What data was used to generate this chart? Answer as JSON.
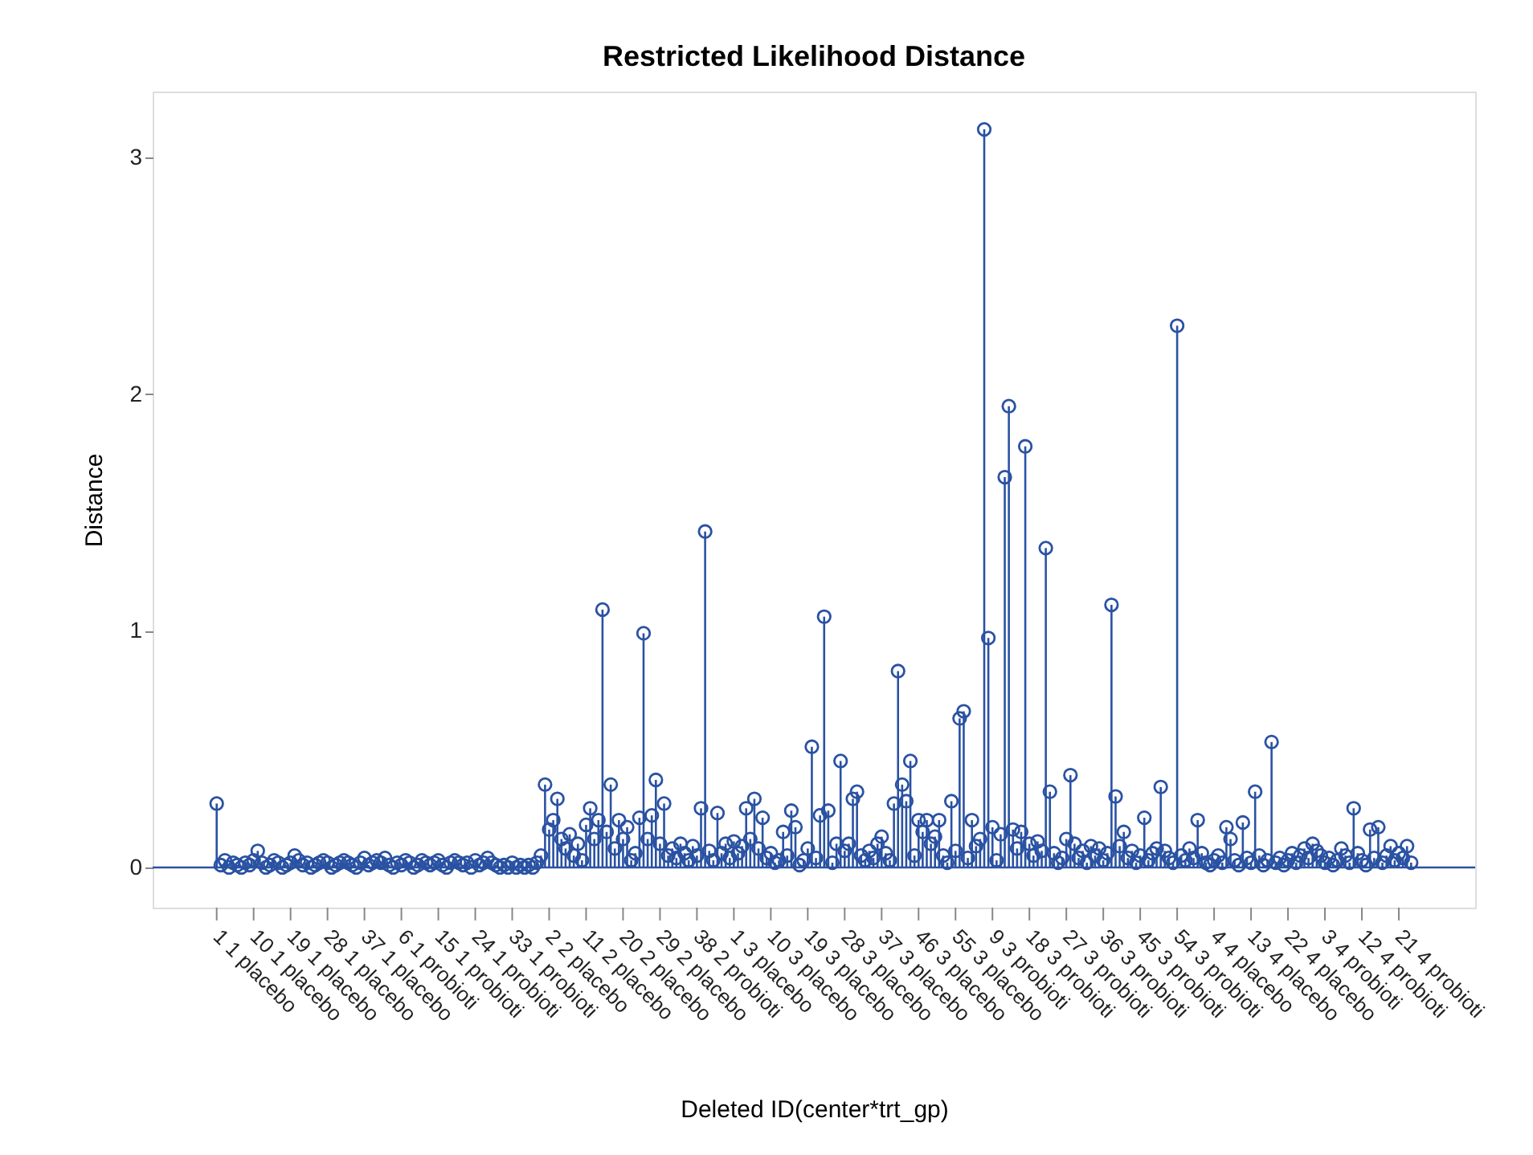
{
  "chart_data": {
    "type": "lollipop",
    "title": "Restricted Likelihood Distance",
    "xlabel": "Deleted ID(center*trt_gp)",
    "ylabel": "Distance",
    "categories": [
      "1 1 placebo",
      null,
      null,
      null,
      null,
      null,
      null,
      null,
      null,
      "10 1 placebo",
      null,
      null,
      null,
      null,
      null,
      null,
      null,
      null,
      "19 1 placebo",
      null,
      null,
      null,
      null,
      null,
      null,
      null,
      null,
      "28 1 placebo",
      null,
      null,
      null,
      null,
      null,
      null,
      null,
      null,
      "37 1 placebo",
      null,
      null,
      null,
      null,
      null,
      null,
      null,
      null,
      "6 1 probioti",
      null,
      null,
      null,
      null,
      null,
      null,
      null,
      null,
      "15 1 probioti",
      null,
      null,
      null,
      null,
      null,
      null,
      null,
      null,
      "24 1 probioti",
      null,
      null,
      null,
      null,
      null,
      null,
      null,
      null,
      "33 1 probioti",
      null,
      null,
      null,
      null,
      null,
      null,
      null,
      null,
      "2 2 placebo",
      null,
      null,
      null,
      null,
      null,
      null,
      null,
      null,
      "11 2 placebo",
      null,
      null,
      null,
      null,
      null,
      null,
      null,
      null,
      "20 2 placebo",
      null,
      null,
      null,
      null,
      null,
      null,
      null,
      null,
      "29 2 placebo",
      null,
      null,
      null,
      null,
      null,
      null,
      null,
      null,
      "38 2 probioti",
      null,
      null,
      null,
      null,
      null,
      null,
      null,
      null,
      "1 3 placebo",
      null,
      null,
      null,
      null,
      null,
      null,
      null,
      null,
      "10 3 placebo",
      null,
      null,
      null,
      null,
      null,
      null,
      null,
      null,
      "19 3 placebo",
      null,
      null,
      null,
      null,
      null,
      null,
      null,
      null,
      "28 3 placebo",
      null,
      null,
      null,
      null,
      null,
      null,
      null,
      null,
      "37 3 placebo",
      null,
      null,
      null,
      null,
      null,
      null,
      null,
      null,
      "46 3 placebo",
      null,
      null,
      null,
      null,
      null,
      null,
      null,
      null,
      "55 3 placebo",
      null,
      null,
      null,
      null,
      null,
      null,
      null,
      null,
      "9 3 probioti",
      null,
      null,
      null,
      null,
      null,
      null,
      null,
      null,
      "18 3 probioti",
      null,
      null,
      null,
      null,
      null,
      null,
      null,
      null,
      "27 3 probioti",
      null,
      null,
      null,
      null,
      null,
      null,
      null,
      null,
      "36 3 probioti",
      null,
      null,
      null,
      null,
      null,
      null,
      null,
      null,
      "45 3 probioti",
      null,
      null,
      null,
      null,
      null,
      null,
      null,
      null,
      "54 3 probioti",
      null,
      null,
      null,
      null,
      null,
      null,
      null,
      null,
      "4 4 placebo",
      null,
      null,
      null,
      null,
      null,
      null,
      null,
      null,
      "13 4 placebo",
      null,
      null,
      null,
      null,
      null,
      null,
      null,
      null,
      "22 4 placebo",
      null,
      null,
      null,
      null,
      null,
      null,
      null,
      null,
      "3 4 probioti",
      null,
      null,
      null,
      null,
      null,
      null,
      null,
      null,
      "12 4 probioti",
      null,
      null,
      null,
      null,
      null,
      null,
      null,
      null,
      "21 4 probioti",
      null,
      null,
      null
    ],
    "series": [
      {
        "color": "#2a52a3",
        "values": [
          0.27,
          0.01,
          0.03,
          0.0,
          0.02,
          0.01,
          0.0,
          0.02,
          0.01,
          0.03,
          0.07,
          0.02,
          0.0,
          0.01,
          0.03,
          0.02,
          0.0,
          0.01,
          0.02,
          0.05,
          0.03,
          0.01,
          0.02,
          0.0,
          0.01,
          0.02,
          0.03,
          0.02,
          0.0,
          0.01,
          0.02,
          0.03,
          0.02,
          0.01,
          0.0,
          0.02,
          0.04,
          0.01,
          0.02,
          0.03,
          0.02,
          0.04,
          0.01,
          0.0,
          0.02,
          0.01,
          0.03,
          0.02,
          0.0,
          0.01,
          0.03,
          0.02,
          0.01,
          0.02,
          0.03,
          0.01,
          0.0,
          0.02,
          0.03,
          0.02,
          0.01,
          0.02,
          0.0,
          0.03,
          0.01,
          0.02,
          0.04,
          0.02,
          0.01,
          0.0,
          0.01,
          0.0,
          0.02,
          0.0,
          0.01,
          0.0,
          0.01,
          0.0,
          0.02,
          0.05,
          0.35,
          0.16,
          0.2,
          0.29,
          0.12,
          0.08,
          0.14,
          0.05,
          0.1,
          0.03,
          0.18,
          0.25,
          0.12,
          0.2,
          1.09,
          0.15,
          0.35,
          0.08,
          0.2,
          0.12,
          0.17,
          0.03,
          0.06,
          0.21,
          0.99,
          0.12,
          0.22,
          0.37,
          0.1,
          0.27,
          0.05,
          0.08,
          0.04,
          0.1,
          0.06,
          0.03,
          0.09,
          0.05,
          0.25,
          1.42,
          0.07,
          0.03,
          0.23,
          0.06,
          0.1,
          0.04,
          0.11,
          0.06,
          0.09,
          0.25,
          0.12,
          0.29,
          0.08,
          0.21,
          0.04,
          0.06,
          0.02,
          0.03,
          0.15,
          0.05,
          0.24,
          0.17,
          0.01,
          0.03,
          0.08,
          0.51,
          0.04,
          0.22,
          1.06,
          0.24,
          0.02,
          0.1,
          0.45,
          0.07,
          0.1,
          0.29,
          0.32,
          0.05,
          0.03,
          0.07,
          0.04,
          0.1,
          0.13,
          0.06,
          0.03,
          0.27,
          0.83,
          0.35,
          0.28,
          0.45,
          0.05,
          0.2,
          0.15,
          0.2,
          0.1,
          0.13,
          0.2,
          0.05,
          0.02,
          0.28,
          0.07,
          0.63,
          0.66,
          0.04,
          0.2,
          0.09,
          0.12,
          3.12,
          0.97,
          0.17,
          0.03,
          0.14,
          1.65,
          1.95,
          0.16,
          0.08,
          0.15,
          1.78,
          0.1,
          0.05,
          0.11,
          0.07,
          1.35,
          0.32,
          0.06,
          0.02,
          0.04,
          0.12,
          0.39,
          0.1,
          0.04,
          0.07,
          0.02,
          0.09,
          0.05,
          0.08,
          0.03,
          0.06,
          1.11,
          0.3,
          0.09,
          0.15,
          0.04,
          0.07,
          0.02,
          0.05,
          0.21,
          0.03,
          0.06,
          0.08,
          0.34,
          0.07,
          0.04,
          0.02,
          2.29,
          0.05,
          0.03,
          0.08,
          0.04,
          0.2,
          0.06,
          0.02,
          0.01,
          0.03,
          0.05,
          0.02,
          0.17,
          0.12,
          0.03,
          0.01,
          0.19,
          0.04,
          0.02,
          0.32,
          0.05,
          0.01,
          0.03,
          0.53,
          0.02,
          0.04,
          0.01,
          0.03,
          0.06,
          0.02,
          0.05,
          0.08,
          0.04,
          0.1,
          0.07,
          0.05,
          0.02,
          0.04,
          0.01,
          0.03,
          0.08,
          0.05,
          0.02,
          0.25,
          0.06,
          0.03,
          0.01,
          0.16,
          0.04,
          0.17,
          0.02,
          0.05,
          0.09,
          0.03,
          0.06,
          0.04,
          0.09,
          0.02
        ]
      }
    ],
    "ylim": [
      -0.17,
      3.28
    ],
    "yticks": [
      0,
      1,
      2,
      3
    ],
    "grid": false,
    "marker": "circle",
    "ref_lines": [
      {
        "axis": "y",
        "value": 0,
        "color": "#2a52a3"
      }
    ]
  }
}
